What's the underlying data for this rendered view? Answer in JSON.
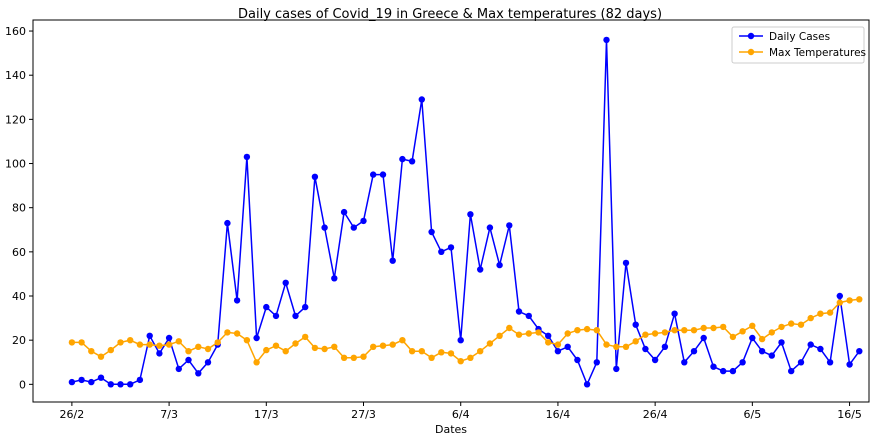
{
  "chart_data": {
    "type": "line",
    "title": "Daily cases of Covid_19 in Greece & Max temperatures (82 days)",
    "xlabel": "Dates",
    "ylabel": "",
    "xlim": [
      -4,
      82
    ],
    "ylim": [
      -8,
      165
    ],
    "xticks": [
      {
        "pos": 0,
        "label": "26/2"
      },
      {
        "pos": 10,
        "label": "7/3"
      },
      {
        "pos": 20,
        "label": "17/3"
      },
      {
        "pos": 30,
        "label": "27/3"
      },
      {
        "pos": 40,
        "label": "6/4"
      },
      {
        "pos": 50,
        "label": "16/4"
      },
      {
        "pos": 60,
        "label": "26/4"
      },
      {
        "pos": 70,
        "label": "6/5"
      },
      {
        "pos": 80,
        "label": "16/5"
      }
    ],
    "yticks": [
      0,
      20,
      40,
      60,
      80,
      100,
      120,
      140,
      160
    ],
    "grid": false,
    "legend_position": "top-right",
    "series": [
      {
        "name": "Daily Cases",
        "color": "#0000ff",
        "marker": "circle",
        "values": [
          1,
          2,
          1,
          3,
          0,
          0,
          0,
          2,
          22,
          14,
          21,
          7,
          11,
          5,
          10,
          18,
          73,
          38,
          103,
          21,
          35,
          31,
          46,
          31,
          35,
          94,
          71,
          48,
          78,
          71,
          74,
          95,
          95,
          56,
          102,
          101,
          129,
          69,
          60,
          62,
          20,
          77,
          52,
          71,
          54,
          72,
          33,
          31,
          25,
          22,
          15,
          17,
          11,
          0,
          10,
          156,
          7,
          55,
          27,
          16,
          11,
          17,
          32,
          10,
          15,
          21,
          8,
          6,
          6,
          10,
          21,
          15,
          13,
          19,
          6,
          10,
          18,
          16,
          10,
          40,
          9,
          15
        ]
      },
      {
        "name": "Max Temperatures",
        "color": "#ffa500",
        "marker": "circle",
        "values": [
          19,
          19,
          15,
          12.5,
          15.5,
          19,
          20,
          18,
          18,
          17.5,
          18,
          19.5,
          15,
          17,
          16,
          19,
          23.5,
          23,
          20,
          10,
          15.5,
          17.5,
          15,
          18.5,
          21.5,
          16.5,
          16,
          17,
          12,
          12,
          12.5,
          17,
          17.5,
          18,
          20,
          15,
          15,
          12,
          14.5,
          14,
          10.5,
          12,
          15,
          18.5,
          22,
          25.5,
          22.5,
          23,
          23.5,
          19,
          18,
          23,
          24.5,
          25,
          24.5,
          18,
          17,
          17,
          19.5,
          22.5,
          23,
          23.5,
          24.5,
          24.5,
          24.5,
          25.5,
          25.5,
          26,
          21.5,
          24,
          26.5,
          20.5,
          23.5,
          26,
          27.5,
          27,
          30,
          32,
          32.5,
          37,
          38,
          38.5
        ]
      }
    ]
  }
}
